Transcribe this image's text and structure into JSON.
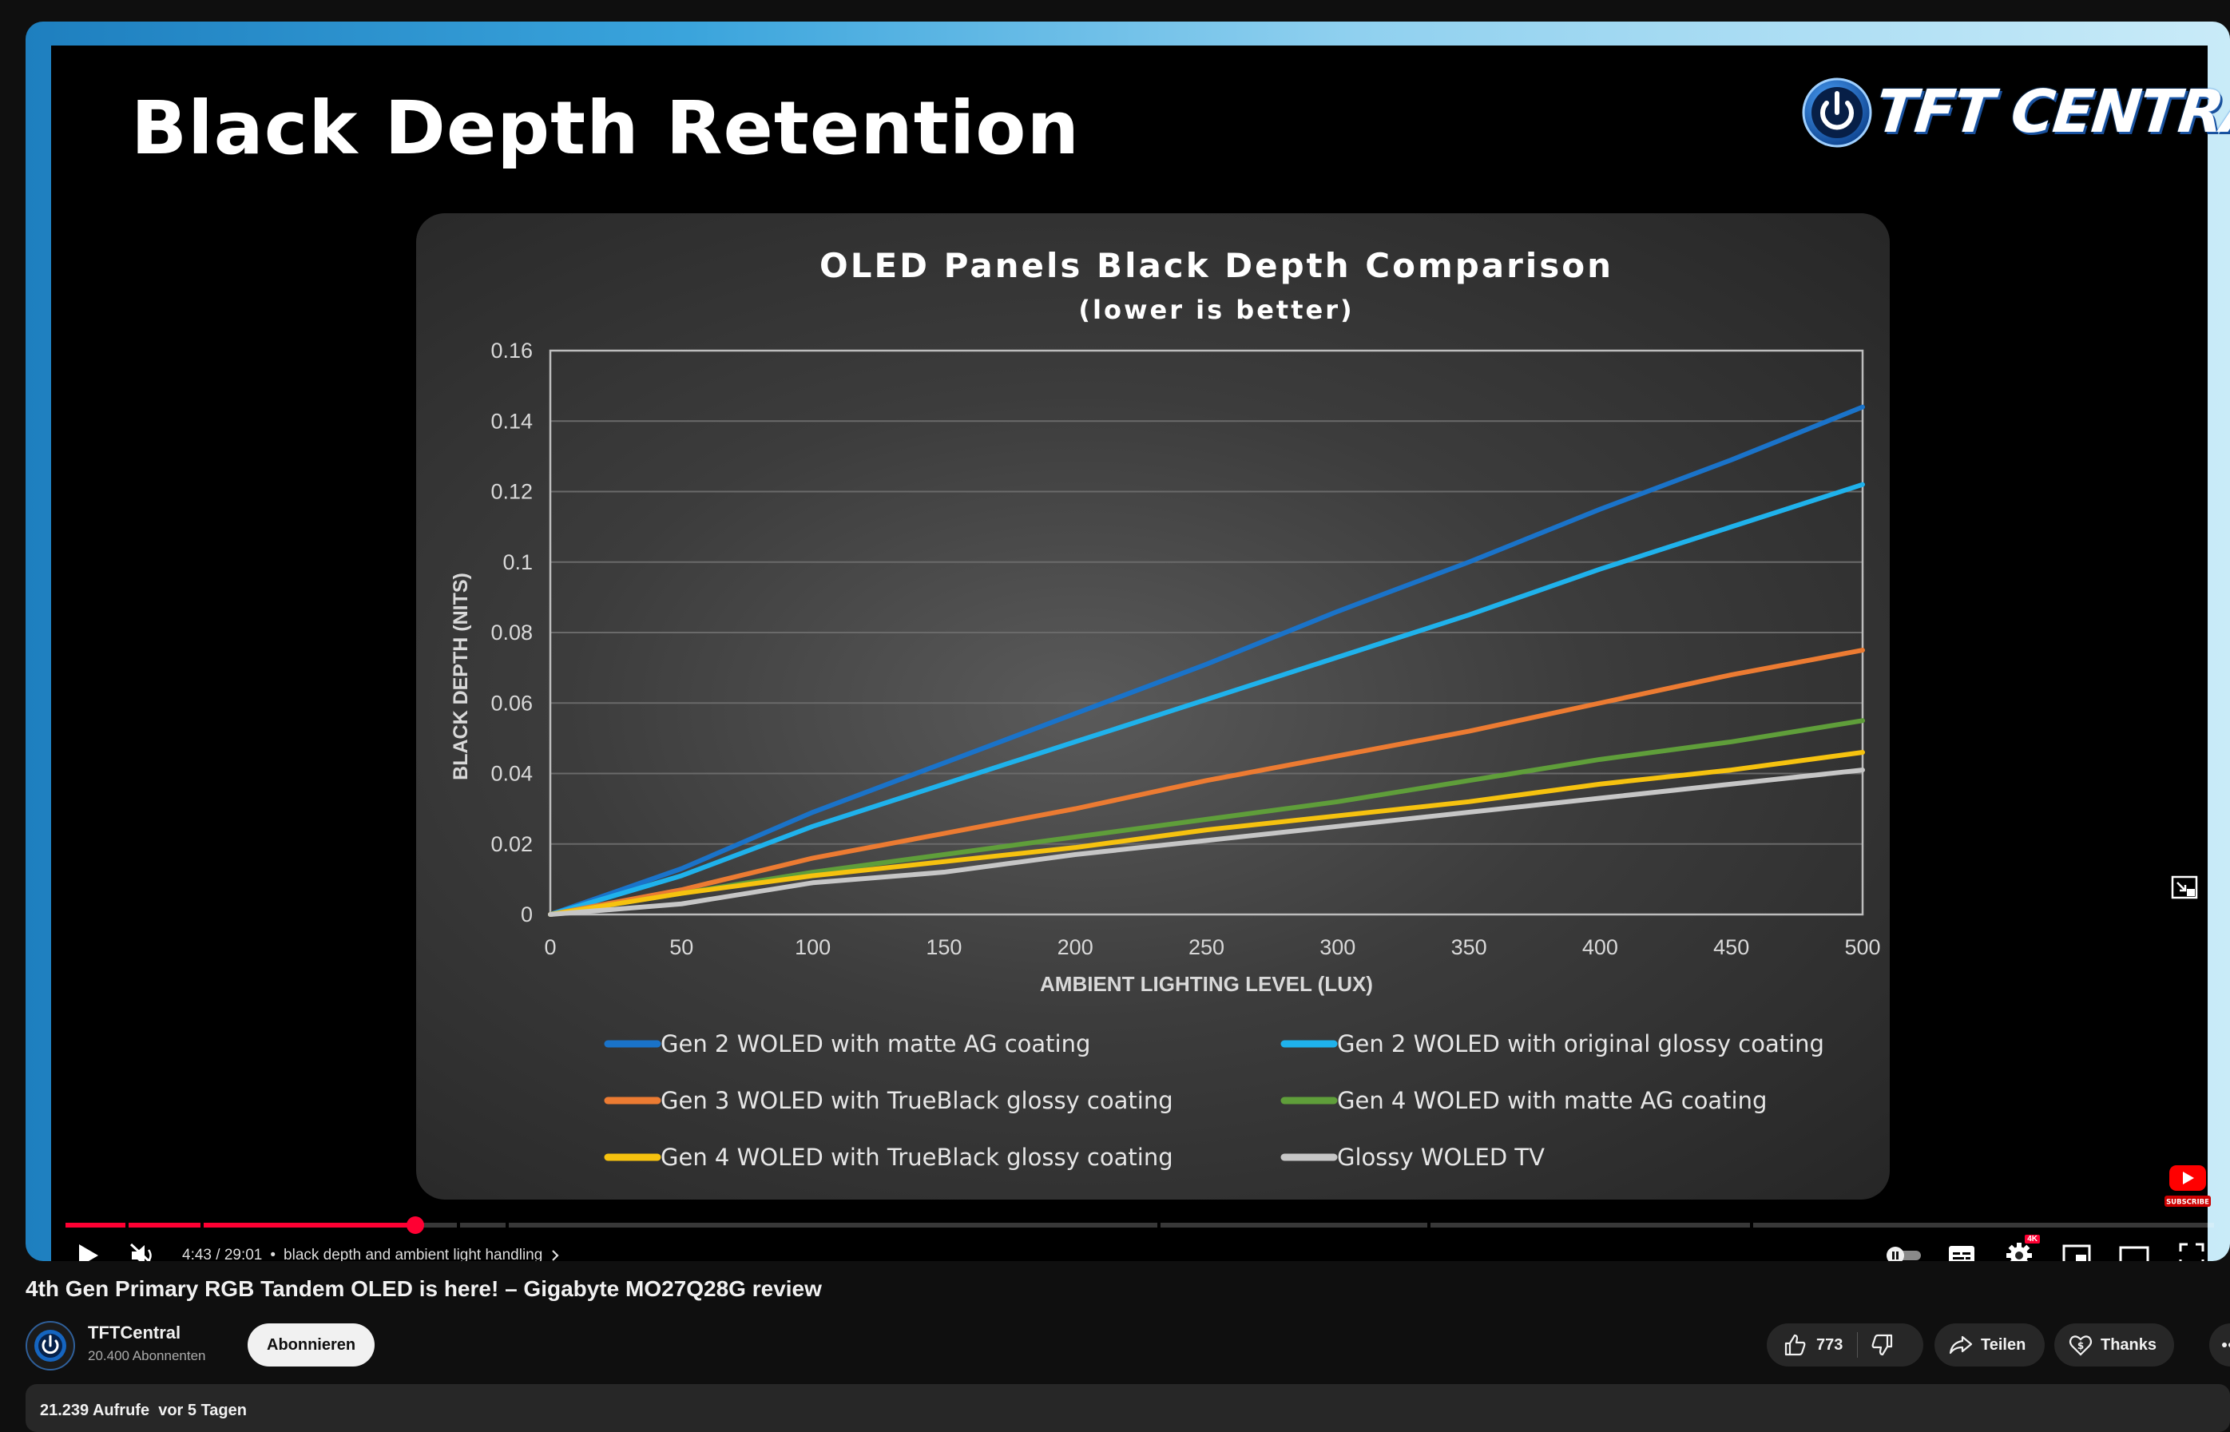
{
  "slide": {
    "title": "Black Depth Retention",
    "logo_text": "TFT CENTRAL",
    "logo_icon": "power-icon"
  },
  "chart_data": {
    "type": "line",
    "title": "OLED Panels Black Depth Comparison",
    "subtitle": "(lower is better)",
    "xlabel": "AMBIENT LIGHTING LEVEL (LUX)",
    "ylabel": "BLACK DEPTH (NITS)",
    "xlim": [
      0,
      500
    ],
    "ylim": [
      0,
      0.16
    ],
    "x_ticks": [
      "0",
      "50",
      "100",
      "150",
      "200",
      "250",
      "300",
      "350",
      "400",
      "450",
      "500"
    ],
    "y_ticks": [
      "0",
      "0.02",
      "0.04",
      "0.06",
      "0.08",
      "0.1",
      "0.12",
      "0.14",
      "0.16"
    ],
    "grid": true,
    "legend_position": "bottom",
    "x": [
      0,
      50,
      100,
      150,
      200,
      250,
      300,
      350,
      400,
      450,
      500
    ],
    "series": [
      {
        "name": "Gen 2 WOLED with matte AG coating",
        "color": "#1a73c9",
        "values": [
          0,
          0.013,
          0.029,
          0.043,
          0.057,
          0.071,
          0.086,
          0.1,
          0.115,
          0.129,
          0.144
        ]
      },
      {
        "name": "Gen 2 WOLED with original glossy coating",
        "color": "#1fb2ec",
        "values": [
          0,
          0.011,
          0.025,
          0.037,
          0.049,
          0.061,
          0.073,
          0.085,
          0.098,
          0.11,
          0.122
        ]
      },
      {
        "name": "Gen 3 WOLED with TrueBlack glossy coating",
        "color": "#ec7b32",
        "values": [
          0,
          0.007,
          0.016,
          0.023,
          0.03,
          0.038,
          0.045,
          0.052,
          0.06,
          0.068,
          0.075
        ]
      },
      {
        "name": "Gen 4 WOLED with matte AG coating",
        "color": "#5f9e3a",
        "values": [
          0,
          0.006,
          0.012,
          0.017,
          0.022,
          0.027,
          0.032,
          0.038,
          0.044,
          0.049,
          0.055
        ]
      },
      {
        "name": "Gen 4 WOLED with TrueBlack glossy coating",
        "color": "#f6c20f",
        "values": [
          0,
          0.006,
          0.011,
          0.015,
          0.019,
          0.024,
          0.028,
          0.032,
          0.037,
          0.041,
          0.046
        ]
      },
      {
        "name": "Glossy WOLED TV",
        "color": "#c6c6c6",
        "values": [
          0,
          0.003,
          0.009,
          0.012,
          0.017,
          0.021,
          0.025,
          0.029,
          0.033,
          0.037,
          0.041
        ]
      }
    ]
  },
  "player": {
    "progress_fraction": 0.1628,
    "chapter_fractions": [
      0.028,
      0.063,
      0.182,
      0.205,
      0.508,
      0.634,
      0.784
    ],
    "time": "4:43 / 29:01",
    "separator": "•",
    "chapter": "black depth and ambient light handling",
    "hd_badge": "4K",
    "subscribe_badge_text": "SUBSCRIBE",
    "accent_color": "#ff0033"
  },
  "video": {
    "title": "4th Gen Primary RGB Tandem OLED is here! – Gigabyte MO27Q28G review",
    "channel": "TFTCentral",
    "subscribers": "20.400 Abonnenten",
    "subscribe_label": "Abonnieren",
    "likes": "773",
    "share_label": "Teilen",
    "thanks_label": "Thanks",
    "views": "21.239 Aufrufe",
    "age": "vor 5 Tagen"
  }
}
